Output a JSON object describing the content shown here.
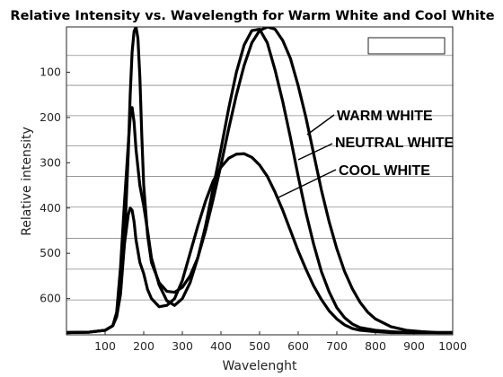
{
  "chart_data": {
    "type": "line",
    "title": "Relative Intensity vs. Wavelength for Warm White and Cool White",
    "xlabel": "Wavelenght",
    "ylabel": "Relative intensity",
    "xlim": [
      0,
      1000
    ],
    "ylim": [
      680,
      0
    ],
    "y_reversed": true,
    "x_ticks": [
      100,
      200,
      300,
      400,
      500,
      600,
      700,
      800,
      900,
      1000
    ],
    "x_tick_labels": [
      "100",
      "200",
      "300",
      "400",
      "500",
      "600",
      "700",
      "800",
      "900",
      "1000"
    ],
    "y_ticks": [
      100,
      200,
      300,
      400,
      500,
      600
    ],
    "y_tick_labels": [
      "100",
      "200",
      "300",
      "400",
      "500",
      "600"
    ],
    "y_grid": [
      63,
      129,
      196,
      263,
      330,
      398,
      467,
      535,
      603
    ],
    "grid": true,
    "legend": "top-right, empty box",
    "series": [
      {
        "name": "WARM WHITE",
        "x": [
          0,
          60,
          100,
          120,
          130,
          140,
          150,
          160,
          165,
          170,
          175,
          180,
          185,
          190,
          195,
          200,
          210,
          220,
          240,
          260,
          280,
          300,
          320,
          340,
          360,
          380,
          400,
          420,
          440,
          460,
          480,
          500,
          520,
          540,
          560,
          580,
          600,
          620,
          640,
          660,
          680,
          700,
          720,
          740,
          760,
          780,
          800,
          840,
          880,
          920,
          960,
          1000
        ],
        "y": [
          675,
          674,
          670,
          660,
          640,
          590,
          480,
          280,
          150,
          55,
          10,
          0,
          25,
          110,
          240,
          350,
          460,
          520,
          565,
          584,
          586,
          575,
          550,
          510,
          450,
          380,
          305,
          225,
          150,
          85,
          35,
          8,
          0,
          5,
          30,
          70,
          130,
          200,
          280,
          360,
          430,
          490,
          540,
          578,
          608,
          630,
          645,
          662,
          670,
          673,
          675,
          675
        ]
      },
      {
        "name": "NEUTRAL WHITE",
        "x": [
          0,
          60,
          100,
          120,
          130,
          140,
          150,
          160,
          165,
          170,
          175,
          180,
          185,
          190,
          200,
          210,
          220,
          240,
          260,
          280,
          300,
          320,
          340,
          360,
          380,
          400,
          420,
          440,
          460,
          480,
          500,
          520,
          540,
          560,
          580,
          600,
          620,
          640,
          660,
          680,
          700,
          720,
          740,
          760,
          800,
          840,
          880,
          920,
          960,
          1000
        ],
        "y": [
          675,
          674,
          670,
          660,
          630,
          530,
          390,
          260,
          200,
          178,
          210,
          270,
          310,
          350,
          395,
          450,
          510,
          570,
          605,
          615,
          600,
          565,
          510,
          440,
          355,
          270,
          180,
          100,
          40,
          8,
          5,
          35,
          95,
          165,
          245,
          330,
          410,
          480,
          540,
          585,
          620,
          642,
          656,
          664,
          670,
          673,
          675,
          675,
          675,
          675
        ]
      },
      {
        "name": "COOL WHITE",
        "x": [
          0,
          60,
          100,
          120,
          130,
          140,
          150,
          160,
          165,
          170,
          175,
          180,
          190,
          200,
          210,
          220,
          240,
          260,
          280,
          300,
          320,
          340,
          360,
          380,
          400,
          420,
          440,
          460,
          480,
          500,
          520,
          540,
          560,
          580,
          600,
          620,
          640,
          660,
          680,
          700,
          720,
          740,
          760,
          800,
          840,
          880,
          920,
          960,
          1000
        ],
        "y": [
          675,
          674,
          670,
          660,
          635,
          570,
          480,
          415,
          400,
          405,
          430,
          470,
          520,
          545,
          580,
          600,
          618,
          615,
          600,
          560,
          500,
          440,
          385,
          340,
          310,
          290,
          281,
          280,
          288,
          305,
          330,
          365,
          405,
          450,
          495,
          535,
          572,
          602,
          627,
          645,
          658,
          666,
          670,
          673,
          675,
          675,
          675,
          675,
          675
        ]
      }
    ],
    "annotations": [
      "WARM WHITE",
      "NEUTRAL WHITE",
      "COOL WHITE"
    ]
  }
}
